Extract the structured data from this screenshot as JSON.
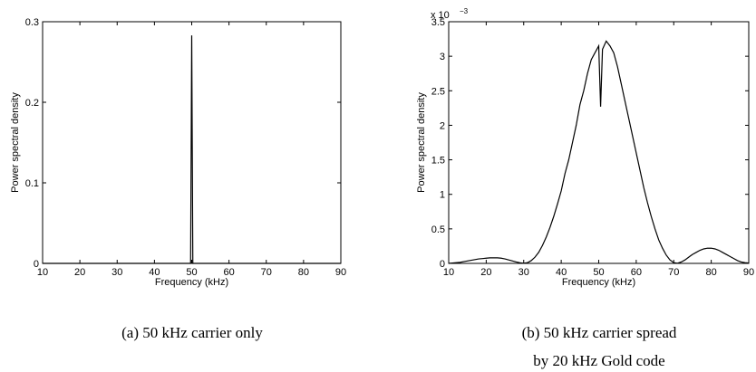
{
  "chart_data": [
    {
      "type": "line",
      "caption": [
        "(a) 50 kHz carrier only"
      ],
      "x_label": "Frequency (kHz)",
      "y_label": "Power spectral density",
      "xlim": [
        10,
        90
      ],
      "xticks": [
        10,
        20,
        30,
        40,
        50,
        60,
        70,
        80,
        90
      ],
      "ylim": [
        0,
        0.3
      ],
      "yticks": [
        0,
        0.1,
        0.2,
        0.3
      ],
      "box": true,
      "series": [
        {
          "color": "#000000",
          "x": [
            10,
            49.7,
            50,
            50.3,
            90
          ],
          "values": [
            0,
            0,
            0.283,
            0,
            0
          ]
        }
      ]
    },
    {
      "type": "line",
      "caption": [
        "(b) 50  kHz  carrier  spread",
        "by 20 kHz Gold code"
      ],
      "x_label": "Frequency (kHz)",
      "y_label": "Power spectral density",
      "y_multiplier": {
        "base": "x 10",
        "exponent": "−3"
      },
      "xlim": [
        10,
        90
      ],
      "xticks": [
        10,
        20,
        30,
        40,
        50,
        60,
        70,
        80,
        90
      ],
      "ylim": [
        0,
        3.5
      ],
      "yticks": [
        0,
        0.5,
        1,
        1.5,
        2,
        2.5,
        3,
        3.5
      ],
      "box": true,
      "series": [
        {
          "color": "#000000",
          "x": [
            10,
            11,
            12,
            13,
            14,
            15,
            16,
            17,
            18,
            19,
            20,
            21,
            22,
            23,
            24,
            25,
            26,
            27,
            28,
            29,
            30,
            31,
            32,
            33,
            34,
            35,
            36,
            37,
            38,
            39,
            40,
            41,
            42,
            43,
            44,
            45,
            46,
            47,
            48,
            49,
            50,
            50.5,
            51,
            52,
            53,
            54,
            55,
            56,
            57,
            58,
            59,
            60,
            61,
            62,
            63,
            64,
            65,
            66,
            67,
            68,
            69,
            70,
            71,
            72,
            73,
            74,
            75,
            76,
            77,
            78,
            79,
            80,
            81,
            82,
            83,
            84,
            85,
            86,
            87,
            88,
            89,
            90
          ],
          "values": [
            0,
            0.005,
            0.01,
            0.015,
            0.025,
            0.035,
            0.045,
            0.055,
            0.065,
            0.07,
            0.075,
            0.08,
            0.08,
            0.08,
            0.075,
            0.065,
            0.05,
            0.035,
            0.02,
            0.008,
            0.002,
            0.01,
            0.04,
            0.09,
            0.16,
            0.26,
            0.38,
            0.52,
            0.68,
            0.86,
            1.05,
            1.3,
            1.5,
            1.75,
            2.0,
            2.3,
            2.5,
            2.75,
            2.95,
            3.05,
            3.15,
            2.27,
            3.1,
            3.22,
            3.15,
            3.05,
            2.85,
            2.6,
            2.35,
            2.1,
            1.85,
            1.6,
            1.35,
            1.1,
            0.88,
            0.68,
            0.5,
            0.34,
            0.22,
            0.12,
            0.05,
            0.01,
            0.002,
            0.02,
            0.05,
            0.09,
            0.13,
            0.16,
            0.19,
            0.21,
            0.22,
            0.22,
            0.21,
            0.19,
            0.16,
            0.13,
            0.1,
            0.07,
            0.04,
            0.02,
            0.01,
            0.005
          ]
        }
      ]
    }
  ]
}
